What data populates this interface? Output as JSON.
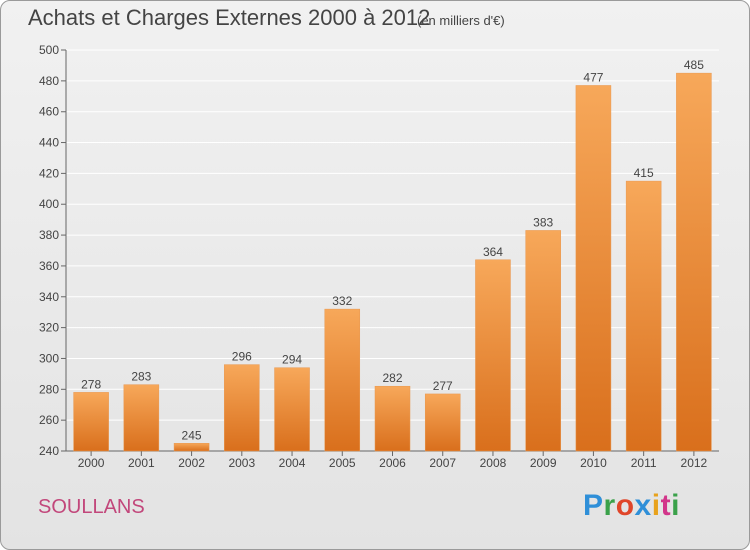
{
  "header": {
    "title": "Achats et Charges Externes 2000 à 2012",
    "subtitle": "(en milliers d'€)"
  },
  "footer": {
    "commune": "SOULLANS",
    "logo_text": "Proxiti",
    "logo_letters": [
      {
        "ch": "P",
        "color": "#2f8fd8"
      },
      {
        "ch": "r",
        "color": "#3aa14a"
      },
      {
        "ch": "o",
        "color": "#e0462a"
      },
      {
        "ch": "x",
        "color": "#2f8fd8"
      },
      {
        "ch": "i",
        "color": "#e8a21c"
      },
      {
        "ch": "t",
        "color": "#d2358a"
      },
      {
        "ch": "i",
        "color": "#3aa14a"
      }
    ]
  },
  "colors": {
    "bar_top": "#f7a85a",
    "bar_bottom": "#d96f1c",
    "commune": "#c2477b",
    "text": "#444444",
    "grid": "#ffffff"
  },
  "chart_data": {
    "type": "bar",
    "categories": [
      "2000",
      "2001",
      "2002",
      "2003",
      "2004",
      "2005",
      "2006",
      "2007",
      "2008",
      "2009",
      "2010",
      "2011",
      "2012"
    ],
    "values": [
      278,
      283,
      245,
      296,
      294,
      332,
      282,
      277,
      364,
      383,
      477,
      415,
      485
    ],
    "ylim": [
      240,
      500
    ],
    "yticks": [
      240,
      260,
      280,
      300,
      320,
      340,
      360,
      380,
      400,
      420,
      440,
      460,
      480,
      500
    ],
    "grid": true,
    "data_labels": true
  }
}
